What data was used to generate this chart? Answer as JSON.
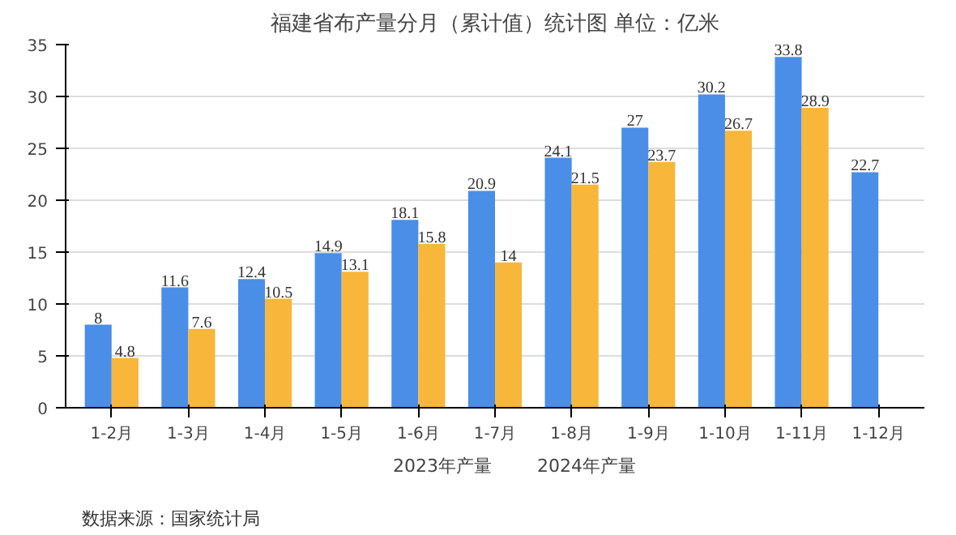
{
  "chart_data": {
    "type": "bar",
    "title": "福建省布产量分月（累计值）统计图 单位：亿米",
    "categories": [
      "1-2月",
      "1-3月",
      "1-4月",
      "1-5月",
      "1-6月",
      "1-7月",
      "1-8月",
      "1-9月",
      "1-10月",
      "1-11月",
      "1-12月"
    ],
    "series": [
      {
        "name": "2023年产量",
        "color": "#4a8ee8",
        "values": [
          8,
          11.6,
          12.4,
          14.9,
          18.1,
          20.9,
          24.1,
          27,
          30.2,
          33.8,
          22.7
        ]
      },
      {
        "name": "2024年产量",
        "color": "#f8b73a",
        "values": [
          4.8,
          7.6,
          10.5,
          13.1,
          15.8,
          14,
          21.5,
          23.7,
          26.7,
          28.9,
          null
        ]
      }
    ],
    "ylim": [
      0,
      35
    ],
    "yticks": [
      0,
      5,
      10,
      15,
      20,
      25,
      30,
      35
    ],
    "grid": "y",
    "legend": "bottom",
    "data_labels": true,
    "annotations": [
      "数据来源：国家统计局"
    ]
  }
}
